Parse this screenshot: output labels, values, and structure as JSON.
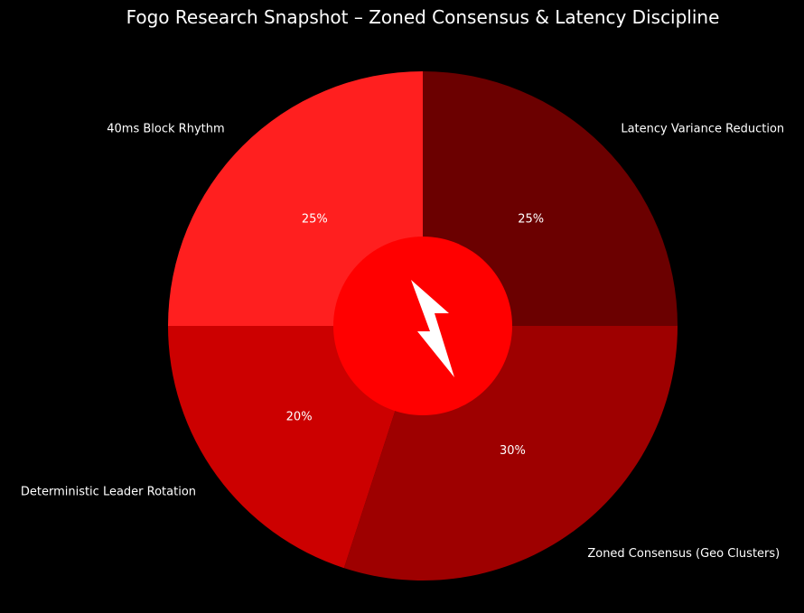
{
  "chart_data": {
    "type": "pie",
    "title": "Fogo Research Snapshot – Zoned Consensus & Latency Discipline",
    "start_angle_deg": 90,
    "direction": "clockwise",
    "center_badge": {
      "color": "#ff0000",
      "icon": "lightning-bolt-icon",
      "icon_color": "#ffffff"
    },
    "slices": [
      {
        "label": "Latency Variance Reduction",
        "value": 25,
        "pct_label": "25%",
        "color": "#6b0000"
      },
      {
        "label": "Zoned Consensus (Geo Clusters)",
        "value": 30,
        "pct_label": "30%",
        "color": "#9e0000"
      },
      {
        "label": "Deterministic Leader Rotation",
        "value": 20,
        "pct_label": "20%",
        "color": "#cc0000"
      },
      {
        "label": "40ms Block Rhythm",
        "value": 25,
        "pct_label": "25%",
        "color": "#ff1f1f"
      }
    ]
  }
}
